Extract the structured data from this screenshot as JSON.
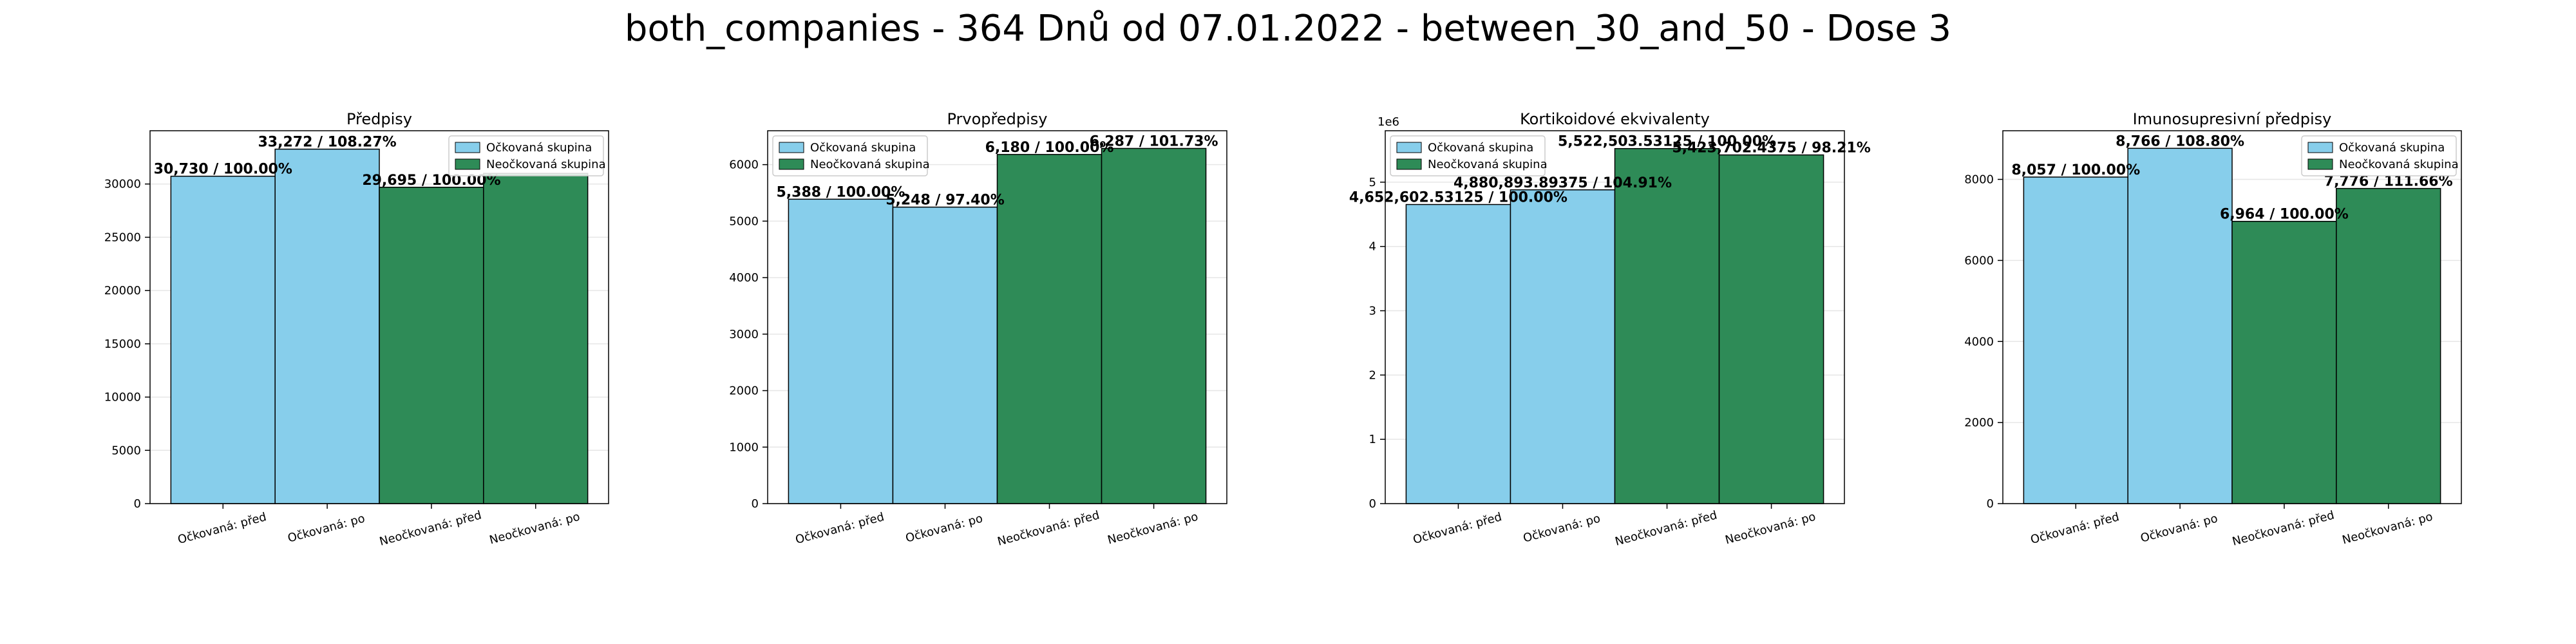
{
  "figure": {
    "suptitle": "both_companies - 364 Dnů od 07.01.2022 - between_30_and_50 - Dose 3"
  },
  "colors": {
    "vaccinated": "#87ceeb",
    "unvaccinated": "#2e8b57"
  },
  "chart_data": [
    {
      "type": "bar",
      "title": "Předpisy",
      "categories": [
        "Očkovaná: před",
        "Očkovaná: po",
        "Neočkovaná: před",
        "Neočkovaná: po"
      ],
      "values": [
        30730,
        33272,
        29695,
        31000
      ],
      "groups": [
        "Očkovaná skupina",
        "Očkovaná skupina",
        "Neočkovaná skupina",
        "Neočkovaná skupina"
      ],
      "labels": [
        "30,730 / 100.00%",
        "33,272 / 108.27%",
        "29,695 / 100.00%",
        ""
      ],
      "legend": [
        "Očkovaná skupina",
        "Neočkovaná skupina"
      ],
      "legend_loc": "upper right",
      "ylim": [
        0,
        35000
      ],
      "yticks": [
        0,
        5000,
        10000,
        15000,
        20000,
        25000,
        30000
      ],
      "y_offset_label": "",
      "grid": true
    },
    {
      "type": "bar",
      "title": "Prvopředpisy",
      "categories": [
        "Očkovaná: před",
        "Očkovaná: po",
        "Neočkovaná: před",
        "Neočkovaná: po"
      ],
      "values": [
        5388,
        5248,
        6180,
        6287
      ],
      "groups": [
        "Očkovaná skupina",
        "Očkovaná skupina",
        "Neočkovaná skupina",
        "Neočkovaná skupina"
      ],
      "labels": [
        "5,388 / 100.00%",
        "5,248 / 97.40%",
        "6,180 / 100.00%",
        "6,287 / 101.73%"
      ],
      "legend": [
        "Očkovaná skupina",
        "Neočkovaná skupina"
      ],
      "legend_loc": "upper left",
      "ylim": [
        0,
        6600
      ],
      "yticks": [
        0,
        1000,
        2000,
        3000,
        4000,
        5000,
        6000
      ],
      "y_offset_label": "",
      "grid": true
    },
    {
      "type": "bar",
      "title": "Kortikoidové ekvivalenty",
      "categories": [
        "Očkovaná: před",
        "Očkovaná: po",
        "Neočkovaná: před",
        "Neočkovaná: po"
      ],
      "values": [
        4652602.53125,
        4880893.89375,
        5522503.53125,
        5423702.4375
      ],
      "groups": [
        "Očkovaná skupina",
        "Očkovaná skupina",
        "Neočkovaná skupina",
        "Neočkovaná skupina"
      ],
      "labels": [
        "4,652,602.53125 / 100.00%",
        "4,880,893.89375 / 104.91%",
        "5,522,503.53125 / 100.00%",
        "5,423,702.4375 / 98.21%"
      ],
      "legend": [
        "Očkovaná skupina",
        "Neočkovaná skupina"
      ],
      "legend_loc": "upper left",
      "ylim": [
        0,
        5800000
      ],
      "yticks": [
        0,
        1000000,
        2000000,
        3000000,
        4000000,
        5000000
      ],
      "ytick_labels": [
        "0",
        "1",
        "2",
        "3",
        "4",
        "5"
      ],
      "y_offset_label": "1e6",
      "grid": true
    },
    {
      "type": "bar",
      "title": "Imunosupresivní předpisy",
      "categories": [
        "Očkovaná: před",
        "Očkovaná: po",
        "Neočkovaná: před",
        "Neočkovaná: po"
      ],
      "values": [
        8057,
        8766,
        6964,
        7776
      ],
      "groups": [
        "Očkovaná skupina",
        "Očkovaná skupina",
        "Neočkovaná skupina",
        "Neočkovaná skupina"
      ],
      "labels": [
        "8,057 / 100.00%",
        "8,766 / 108.80%",
        "6,964 / 100.00%",
        "7,776 / 111.66%"
      ],
      "legend": [
        "Očkovaná skupina",
        "Neočkovaná skupina"
      ],
      "legend_loc": "upper right",
      "ylim": [
        0,
        9200
      ],
      "yticks": [
        0,
        2000,
        4000,
        6000,
        8000
      ],
      "y_offset_label": "",
      "grid": true
    }
  ]
}
